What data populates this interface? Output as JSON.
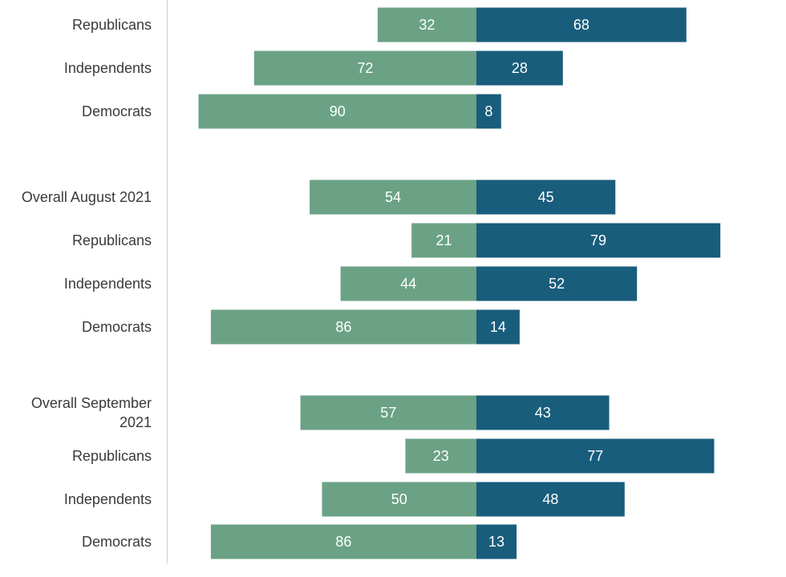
{
  "chart_data": {
    "type": "bar",
    "orientation": "horizontal-diverging",
    "series": [
      {
        "color": "#6ba286"
      },
      {
        "color": "#195d7c"
      }
    ],
    "rows": [
      {
        "label": [
          "Republicans"
        ],
        "left": 32,
        "right": 68,
        "left_label": "32",
        "right_label": "68"
      },
      {
        "label": [
          "Independents"
        ],
        "left": 72,
        "right": 28,
        "left_label": "72",
        "right_label": "28"
      },
      {
        "label": [
          "Democrats"
        ],
        "left": 90,
        "right": 8,
        "left_label": "90",
        "right_label": "8"
      },
      {
        "label": [
          "Overall August 2021"
        ],
        "left": 54,
        "right": 45,
        "left_label": "54",
        "right_label": "45"
      },
      {
        "label": [
          "Republicans"
        ],
        "left": 21,
        "right": 79,
        "left_label": "21",
        "right_label": "79"
      },
      {
        "label": [
          "Independents"
        ],
        "left": 44,
        "right": 52,
        "left_label": "44",
        "right_label": "52"
      },
      {
        "label": [
          "Democrats"
        ],
        "left": 86,
        "right": 14,
        "left_label": "86",
        "right_label": "14"
      },
      {
        "label": [
          "Overall September",
          "2021"
        ],
        "left": 57,
        "right": 43,
        "left_label": "57",
        "right_label": "43"
      },
      {
        "label": [
          "Republicans"
        ],
        "left": 23,
        "right": 77,
        "left_label": "23",
        "right_label": "77"
      },
      {
        "label": [
          "Independents"
        ],
        "left": 50,
        "right": 48,
        "left_label": "50",
        "right_label": "48"
      },
      {
        "label": [
          "Democrats"
        ],
        "left": 86,
        "right": 13,
        "left_label": "86",
        "right_label": "13"
      }
    ]
  }
}
